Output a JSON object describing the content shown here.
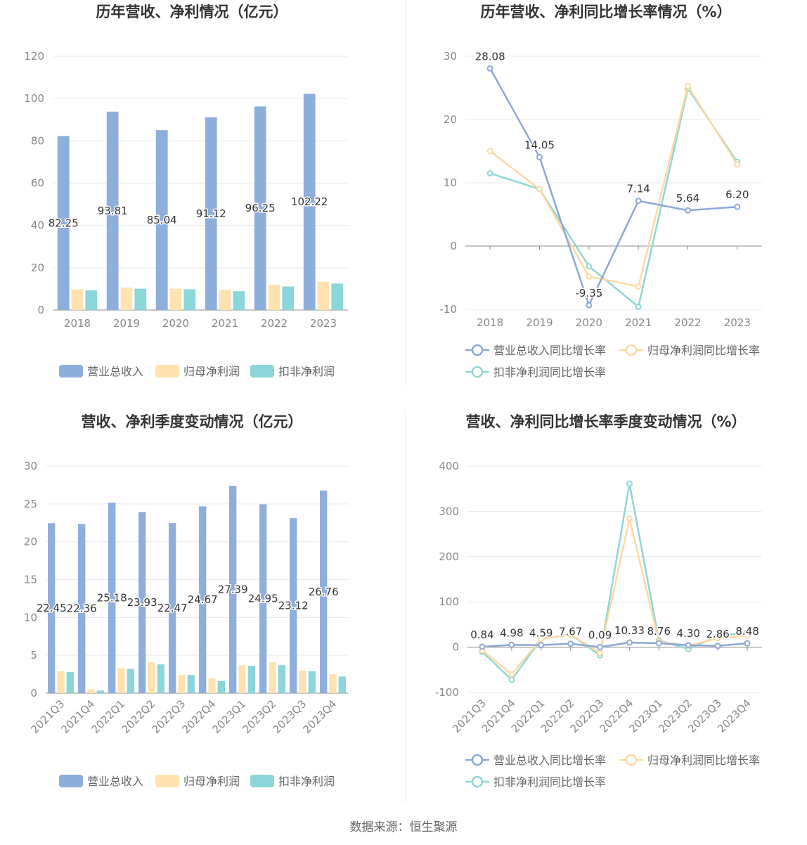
{
  "colors": {
    "revenue": "#8eaedb",
    "parent_profit": "#ffe2b0",
    "deducted_profit": "#8ad6d8",
    "rev_line": "#8ba8d8",
    "parent_line": "#ffd9a0",
    "deducted_line": "#8ed8d6",
    "grid": "#e6e9f2",
    "axis_text": "#888888",
    "label_text": "#333333",
    "title_text": "#333333"
  },
  "footer": {
    "source": "数据来源：恒生聚源"
  },
  "chart_data": [
    {
      "id": "annual_amount",
      "type": "bar",
      "title": "历年营收、净利情况（亿元）",
      "categories": [
        "2018",
        "2019",
        "2020",
        "2021",
        "2022",
        "2023"
      ],
      "ylim": [
        0,
        120
      ],
      "yticks": [
        0,
        20,
        40,
        60,
        80,
        100,
        120
      ],
      "grid": true,
      "legend_position": "bottom",
      "series": [
        {
          "name": "营业总收入",
          "color_key": "revenue",
          "values": [
            82.25,
            93.81,
            85.04,
            91.12,
            96.25,
            102.22
          ],
          "labels": [
            "82.25",
            "93.81",
            "85.04",
            "91.12",
            "96.25",
            "102.22"
          ]
        },
        {
          "name": "归母净利润",
          "color_key": "parent_profit",
          "values": [
            9.8,
            10.6,
            10.1,
            9.5,
            11.9,
            13.4
          ]
        },
        {
          "name": "扣非净利润",
          "color_key": "deducted_profit",
          "values": [
            9.3,
            10.1,
            9.8,
            8.9,
            11.1,
            12.5
          ]
        }
      ]
    },
    {
      "id": "annual_growth",
      "type": "line",
      "title": "历年营收、净利同比增长率情况（%）",
      "categories": [
        "2018",
        "2019",
        "2020",
        "2021",
        "2022",
        "2023"
      ],
      "ylim": [
        -10,
        30
      ],
      "yticks": [
        -10,
        0,
        10,
        20,
        30
      ],
      "grid": true,
      "legend_position": "bottom",
      "series": [
        {
          "name": "营业总收入同比增长率",
          "color_key": "rev_line",
          "values": [
            28.08,
            14.05,
            -9.35,
            7.14,
            5.64,
            6.2
          ],
          "labels": [
            "28.08",
            "14.05",
            "-9.35",
            "7.14",
            "5.64",
            "6.20"
          ]
        },
        {
          "name": "归母净利润同比增长率",
          "color_key": "parent_line",
          "values": [
            15.0,
            9.0,
            -4.8,
            -6.4,
            25.3,
            12.9
          ]
        },
        {
          "name": "扣非净利润同比增长率",
          "color_key": "deducted_line",
          "values": [
            11.5,
            9.0,
            -3.2,
            -9.6,
            24.9,
            13.3
          ]
        }
      ]
    },
    {
      "id": "quarter_amount",
      "type": "bar",
      "title": "营收、净利季度变动情况（亿元）",
      "categories": [
        "2021Q3",
        "2021Q4",
        "2022Q1",
        "2022Q2",
        "2022Q3",
        "2022Q4",
        "2023Q1",
        "2023Q2",
        "2023Q3",
        "2023Q4"
      ],
      "ylim": [
        0,
        30
      ],
      "yticks": [
        0,
        5,
        10,
        15,
        20,
        25,
        30
      ],
      "grid": true,
      "legend_position": "bottom",
      "series": [
        {
          "name": "营业总收入",
          "color_key": "revenue",
          "values": [
            22.45,
            22.36,
            25.18,
            23.93,
            22.47,
            24.67,
            27.39,
            24.95,
            23.12,
            26.76
          ],
          "labels": [
            "22.45",
            "22.36",
            "25.18",
            "23.93",
            "22.47",
            "24.67",
            "27.39",
            "24.95",
            "23.12",
            "26.76"
          ]
        },
        {
          "name": "归母净利润",
          "color_key": "parent_profit",
          "values": [
            2.9,
            0.5,
            3.3,
            4.1,
            2.4,
            2.0,
            3.7,
            4.1,
            3.0,
            2.5
          ]
        },
        {
          "name": "扣非净利润",
          "color_key": "deducted_profit",
          "values": [
            2.8,
            0.35,
            3.2,
            3.8,
            2.4,
            1.6,
            3.6,
            3.7,
            2.9,
            2.2
          ]
        }
      ]
    },
    {
      "id": "quarter_growth",
      "type": "line",
      "title": "营收、净利同比增长率季度变动情况（%）",
      "categories": [
        "2021Q3",
        "2021Q4",
        "2022Q1",
        "2022Q2",
        "2022Q3",
        "2022Q4",
        "2023Q1",
        "2023Q2",
        "2023Q3",
        "2023Q4"
      ],
      "ylim": [
        -100,
        400
      ],
      "yticks": [
        -100,
        0,
        100,
        200,
        300,
        400
      ],
      "grid": true,
      "legend_position": "bottom",
      "series": [
        {
          "name": "营业总收入同比增长率",
          "color_key": "rev_line",
          "values": [
            0.84,
            4.98,
            4.59,
            7.67,
            0.09,
            10.33,
            8.76,
            4.3,
            2.86,
            8.48
          ],
          "labels": [
            "0.84",
            "4.98",
            "4.59",
            "7.67",
            "0.09",
            "10.33",
            "8.76",
            "4.30",
            "2.86",
            "8.48"
          ]
        },
        {
          "name": "归母净利润同比增长率",
          "color_key": "parent_line",
          "values": [
            -7,
            -60,
            18,
            28,
            -13,
            284,
            12,
            3,
            20,
            26
          ]
        },
        {
          "name": "扣非净利润同比增长率",
          "color_key": "deducted_line",
          "values": [
            -10,
            -72,
            18,
            28,
            -18,
            361,
            15,
            -4,
            25,
            32
          ]
        }
      ]
    }
  ]
}
